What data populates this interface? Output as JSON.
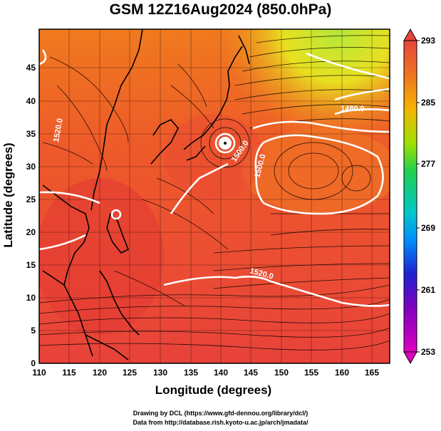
{
  "title": "GSM 12Z16Aug2024 (850.0hPa)",
  "x_axis": {
    "label": "Longitude (degrees)",
    "ticks": [
      "110",
      "115",
      "120",
      "125",
      "130",
      "135",
      "140",
      "145",
      "150",
      "155",
      "160",
      "165"
    ]
  },
  "y_axis": {
    "label": "Latitude  (degrees)",
    "ticks": [
      "0",
      "5",
      "10",
      "15",
      "20",
      "25",
      "30",
      "35",
      "40",
      "45"
    ]
  },
  "colorbar": {
    "ticks": [
      "293",
      "285",
      "277",
      "269",
      "261",
      "253"
    ],
    "colors": [
      "#e8453c",
      "#f07a1e",
      "#f5b400",
      "#9fe000",
      "#20d050",
      "#00c8c8",
      "#0090ff",
      "#2020d0",
      "#8000c0",
      "#e000c0"
    ]
  },
  "contours": {
    "labels": [
      "1480.0",
      "1500.0",
      "1520.0",
      "1500.0",
      "1520.0"
    ]
  },
  "credits": {
    "line1": "Drawing by DCL (https://www.gfd-dennou.org/library/dcl/)",
    "line2": "Data from http://database.rish.kyoto-u.ac.jp/arch/jmadata/"
  }
}
